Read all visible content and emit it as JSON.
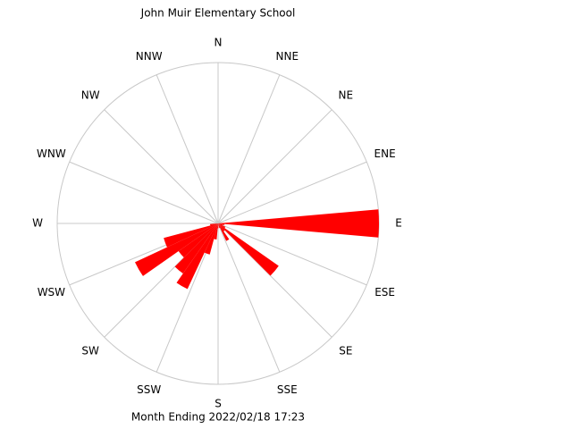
{
  "chart_data": {
    "type": "wind_rose",
    "title": "John Muir Elementary School",
    "subtitle": "Month Ending 2022/02/18 17:23",
    "direction_labels": [
      "N",
      "NNE",
      "NE",
      "ENE",
      "E",
      "ESE",
      "SE",
      "SSE",
      "S",
      "SSW",
      "SW",
      "WSW",
      "W",
      "WNW",
      "NW",
      "NNW"
    ],
    "values": [
      0,
      0,
      0,
      0,
      0,
      0,
      0,
      0,
      0,
      1.0,
      0.04,
      0.03,
      0.05,
      0.46,
      0.06,
      0.12,
      0.03,
      0,
      0.03,
      0.1,
      0.2,
      0.45,
      0.38,
      0.3,
      0.57,
      0.35,
      0.05,
      0,
      0,
      0,
      0,
      0,
      0,
      0,
      0,
      0
    ],
    "rlim": [
      0,
      1
    ],
    "color": "#ff0000"
  }
}
